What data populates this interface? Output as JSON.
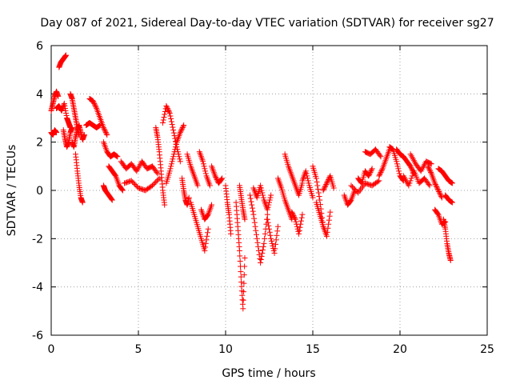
{
  "chart_data": {
    "type": "scatter",
    "title": "Day 087 of 2021, Sidereal Day-to-day VTEC variation (SDTVAR) for receiver sg27",
    "xlabel": "GPS time / hours",
    "ylabel": "SDTVAR / TECUs",
    "xlim": [
      0,
      25
    ],
    "ylim": [
      -6,
      6
    ],
    "xticks": [
      0,
      5,
      10,
      15,
      20,
      25
    ],
    "yticks": [
      -6,
      -4,
      -2,
      0,
      2,
      4,
      6
    ],
    "grid": true,
    "marker": "plus",
    "color": "#ff0000",
    "series": [
      {
        "name": "SDTVAR",
        "segments": [
          {
            "x": [
              0.0,
              0.1,
              0.2,
              0.3,
              0.4
            ],
            "y": [
              3.3,
              3.6,
              3.9,
              4.1,
              3.9
            ]
          },
          {
            "x": [
              0.0,
              0.1,
              0.2,
              0.3
            ],
            "y": [
              2.4,
              2.3,
              2.5,
              2.4
            ]
          },
          {
            "x": [
              0.3,
              0.45,
              0.6,
              0.75,
              0.9,
              1.0,
              1.1
            ],
            "y": [
              3.4,
              3.5,
              3.3,
              3.6,
              3.0,
              2.8,
              2.6
            ]
          },
          {
            "x": [
              0.45,
              0.55,
              0.65,
              0.75,
              0.85
            ],
            "y": [
              5.1,
              5.3,
              5.4,
              5.5,
              5.6
            ]
          },
          {
            "x": [
              0.7,
              0.8,
              0.9,
              1.0,
              1.1,
              1.2
            ],
            "y": [
              2.5,
              2.1,
              1.8,
              2.0,
              2.4,
              2.6
            ]
          },
          {
            "x": [
              1.1,
              1.2,
              1.3,
              1.4,
              1.5,
              1.6
            ],
            "y": [
              4.0,
              3.8,
              3.4,
              3.0,
              2.6,
              2.3
            ]
          },
          {
            "x": [
              1.2,
              1.3,
              1.4,
              1.5,
              1.6,
              1.7,
              1.8,
              1.9
            ],
            "y": [
              2.0,
              1.8,
              2.2,
              2.5,
              2.7,
              2.4,
              2.1,
              2.3
            ]
          },
          {
            "x": [
              1.4,
              1.5,
              1.6,
              1.7,
              1.8
            ],
            "y": [
              1.5,
              0.8,
              0.2,
              -0.3,
              -0.5
            ]
          },
          {
            "x": [
              2.2,
              2.4,
              2.6,
              2.8,
              3.0,
              3.2
            ],
            "y": [
              3.8,
              3.7,
              3.4,
              3.0,
              2.6,
              2.3
            ]
          },
          {
            "x": [
              2.0,
              2.2,
              2.4,
              2.6,
              2.8
            ],
            "y": [
              2.7,
              2.8,
              2.7,
              2.6,
              2.7
            ]
          },
          {
            "x": [
              3.0,
              3.2,
              3.4,
              3.6,
              3.8
            ],
            "y": [
              2.0,
              1.6,
              1.4,
              1.5,
              1.4
            ]
          },
          {
            "x": [
              3.0,
              3.1,
              3.3,
              3.5
            ],
            "y": [
              0.2,
              0.0,
              -0.2,
              -0.4
            ]
          },
          {
            "x": [
              3.3,
              3.5,
              3.7,
              3.9,
              4.1
            ],
            "y": [
              1.0,
              0.8,
              0.6,
              0.2,
              0.0
            ]
          },
          {
            "x": [
              4.0,
              4.3,
              4.6,
              4.9,
              5.2,
              5.5,
              5.8,
              6.1
            ],
            "y": [
              1.2,
              0.9,
              1.1,
              0.8,
              1.2,
              0.9,
              1.0,
              0.7
            ]
          },
          {
            "x": [
              4.2,
              4.6,
              5.0,
              5.4,
              5.8,
              6.2
            ],
            "y": [
              0.3,
              0.4,
              0.1,
              0.0,
              0.2,
              0.5
            ]
          },
          {
            "x": [
              6.0,
              6.1,
              6.2,
              6.3,
              6.4,
              6.5
            ],
            "y": [
              2.6,
              2.2,
              1.6,
              0.8,
              0.0,
              -0.6
            ]
          },
          {
            "x": [
              6.4,
              6.6,
              6.8,
              7.0,
              7.2,
              7.4
            ],
            "y": [
              2.8,
              3.5,
              3.2,
              2.5,
              1.8,
              1.2
            ]
          },
          {
            "x": [
              6.6,
              6.8,
              7.0,
              7.2,
              7.4,
              7.6
            ],
            "y": [
              0.3,
              0.8,
              1.4,
              2.0,
              2.4,
              2.7
            ]
          },
          {
            "x": [
              7.5,
              7.6,
              7.7,
              7.8,
              7.9
            ],
            "y": [
              0.5,
              0.0,
              -0.4,
              -0.6,
              -0.3
            ]
          },
          {
            "x": [
              7.8,
              8.0,
              8.2,
              8.4
            ],
            "y": [
              1.5,
              1.0,
              0.6,
              0.2
            ]
          },
          {
            "x": [
              8.0,
              8.2,
              8.4,
              8.6,
              8.8,
              9.0
            ],
            "y": [
              -0.5,
              -1.0,
              -1.5,
              -2.0,
              -2.5,
              -1.6
            ]
          },
          {
            "x": [
              8.5,
              8.7,
              8.9,
              9.1
            ],
            "y": [
              1.6,
              1.2,
              0.6,
              0.2
            ]
          },
          {
            "x": [
              8.6,
              8.8,
              9.0,
              9.2
            ],
            "y": [
              -0.8,
              -1.2,
              -1.0,
              -0.6
            ]
          },
          {
            "x": [
              9.2,
              9.4,
              9.6,
              9.8
            ],
            "y": [
              1.0,
              0.6,
              0.3,
              0.5
            ]
          },
          {
            "x": [
              10.0,
              10.1,
              10.2,
              10.3
            ],
            "y": [
              0.2,
              -0.5,
              -1.0,
              -1.8
            ]
          },
          {
            "x": [
              10.6,
              10.7,
              10.8,
              10.9,
              11.0,
              11.1
            ],
            "y": [
              -0.5,
              -1.5,
              -2.5,
              -3.8,
              -4.9,
              -2.8
            ]
          },
          {
            "x": [
              10.8,
              10.9,
              11.0,
              11.1
            ],
            "y": [
              0.2,
              -0.3,
              -0.8,
              -1.2
            ]
          },
          {
            "x": [
              11.4,
              11.6,
              11.8,
              12.0,
              12.2,
              12.4
            ],
            "y": [
              -0.2,
              -1.0,
              -2.0,
              -3.0,
              -2.2,
              -1.0
            ]
          },
          {
            "x": [
              11.6,
              11.8,
              12.0,
              12.2,
              12.4,
              12.6
            ],
            "y": [
              0.1,
              -0.3,
              0.2,
              -0.4,
              -0.8,
              -0.2
            ]
          },
          {
            "x": [
              12.4,
              12.6,
              12.8,
              13.0
            ],
            "y": [
              -1.2,
              -2.0,
              -2.6,
              -1.5
            ]
          },
          {
            "x": [
              13.0,
              13.2,
              13.4,
              13.6,
              13.8
            ],
            "y": [
              0.5,
              0.1,
              -0.4,
              -0.8,
              -1.2
            ]
          },
          {
            "x": [
              13.4,
              13.6,
              13.8,
              14.0,
              14.2,
              14.4
            ],
            "y": [
              1.5,
              1.0,
              0.6,
              0.2,
              -0.2,
              0.3
            ]
          },
          {
            "x": [
              13.8,
              14.0,
              14.2,
              14.4
            ],
            "y": [
              -0.9,
              -1.2,
              -1.8,
              -1.0
            ]
          },
          {
            "x": [
              14.4,
              14.6,
              14.8,
              15.0
            ],
            "y": [
              0.4,
              0.8,
              0.2,
              -0.3
            ]
          },
          {
            "x": [
              15.0,
              15.2,
              15.4,
              15.6
            ],
            "y": [
              1.0,
              0.5,
              -0.4,
              -1.5
            ]
          },
          {
            "x": [
              15.2,
              15.4,
              15.6,
              15.8,
              16.0
            ],
            "y": [
              -0.5,
              -1.0,
              -1.5,
              -1.9,
              -0.9
            ]
          },
          {
            "x": [
              15.6,
              15.8,
              16.0,
              16.2
            ],
            "y": [
              0.0,
              0.3,
              0.6,
              0.1
            ]
          },
          {
            "x": [
              16.8,
              17.0,
              17.2,
              17.4
            ],
            "y": [
              -0.2,
              -0.6,
              -0.4,
              0.0
            ]
          },
          {
            "x": [
              17.2,
              17.6,
              18.0,
              18.4,
              18.8
            ],
            "y": [
              0.2,
              -0.1,
              0.3,
              0.2,
              0.4
            ]
          },
          {
            "x": [
              17.6,
              17.8,
              18.0,
              18.2,
              18.4
            ],
            "y": [
              0.5,
              0.3,
              0.8,
              0.6,
              0.9
            ]
          },
          {
            "x": [
              18.0,
              18.3,
              18.6,
              18.9
            ],
            "y": [
              1.6,
              1.5,
              1.7,
              1.4
            ]
          },
          {
            "x": [
              18.8,
              19.0,
              19.2,
              19.4
            ],
            "y": [
              0.6,
              0.9,
              1.3,
              1.7
            ]
          },
          {
            "x": [
              19.4,
              19.6,
              19.8,
              20.0,
              20.2
            ],
            "y": [
              1.8,
              1.7,
              1.2,
              0.6,
              0.4
            ]
          },
          {
            "x": [
              19.8,
              20.0,
              20.2,
              20.4,
              20.6,
              20.8
            ],
            "y": [
              1.7,
              1.5,
              1.4,
              1.2,
              1.0,
              0.7
            ]
          },
          {
            "x": [
              20.2,
              20.5,
              20.8,
              21.1,
              21.4,
              21.7
            ],
            "y": [
              0.6,
              0.2,
              0.8,
              0.3,
              0.5,
              0.2
            ]
          },
          {
            "x": [
              20.6,
              20.9,
              21.2,
              21.5,
              21.8
            ],
            "y": [
              1.5,
              1.1,
              0.8,
              1.2,
              1.1
            ]
          },
          {
            "x": [
              21.6,
              21.8,
              22.0,
              22.2,
              22.4
            ],
            "y": [
              1.0,
              0.7,
              0.3,
              0.0,
              -0.3
            ]
          },
          {
            "x": [
              22.2,
              22.4,
              22.6,
              22.8,
              23.0
            ],
            "y": [
              0.9,
              0.8,
              0.6,
              0.4,
              0.3
            ]
          },
          {
            "x": [
              22.0,
              22.2,
              22.4,
              22.6
            ],
            "y": [
              -0.8,
              -1.0,
              -1.4,
              -1.3
            ]
          },
          {
            "x": [
              22.5,
              22.6,
              22.7,
              22.8,
              22.9
            ],
            "y": [
              -1.2,
              -1.6,
              -2.2,
              -2.6,
              -2.9
            ]
          },
          {
            "x": [
              22.6,
              22.8,
              23.0
            ],
            "y": [
              -0.2,
              -0.4,
              -0.5
            ]
          }
        ]
      }
    ]
  }
}
